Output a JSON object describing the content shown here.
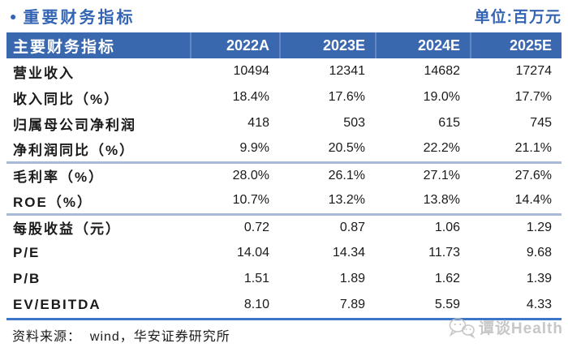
{
  "page": {
    "bullet": "●",
    "title": "重要财务指标",
    "unit_label": "单位:百万元",
    "source_label": "资料来源：  wind，华安证券研究所",
    "watermark_text": "谭谈Health"
  },
  "colors": {
    "header_bg": "#3A68AE",
    "header_divider": "#6186C4",
    "title_blue": "#3465B4",
    "strong_line": "#3B76C8",
    "light_line": "#A9B9D8",
    "watermark_gray": "#C5C5C5"
  },
  "chart_data": {
    "type": "table",
    "title": "重要财务指标",
    "unit": "百万元",
    "columns": [
      "主要财务指标",
      "2022A",
      "2023E",
      "2024E",
      "2025E"
    ],
    "rows": [
      {
        "label": "营业收入",
        "values": [
          "10494",
          "12341",
          "14682",
          "17274"
        ],
        "divider_after": false
      },
      {
        "label": "收入同比（%）",
        "values": [
          "18.4%",
          "17.6%",
          "19.0%",
          "17.7%"
        ],
        "divider_after": false
      },
      {
        "label": "归属母公司净利润",
        "values": [
          "418",
          "503",
          "615",
          "745"
        ],
        "divider_after": false
      },
      {
        "label": "净利润同比（%）",
        "values": [
          "9.9%",
          "20.5%",
          "22.2%",
          "21.1%"
        ],
        "divider_after": true
      },
      {
        "label": "毛利率（%）",
        "values": [
          "28.0%",
          "26.1%",
          "27.1%",
          "27.6%"
        ],
        "divider_after": false
      },
      {
        "label": "ROE（%）",
        "values": [
          "10.7%",
          "13.2%",
          "13.8%",
          "14.4%"
        ],
        "divider_after": true
      },
      {
        "label": "每股收益（元）",
        "values": [
          "0.72",
          "0.87",
          "1.06",
          "1.29"
        ],
        "divider_after": false
      },
      {
        "label": "P/E",
        "values": [
          "14.04",
          "14.34",
          "11.73",
          "9.68"
        ],
        "divider_after": false
      },
      {
        "label": "P/B",
        "values": [
          "1.51",
          "1.89",
          "1.62",
          "1.39"
        ],
        "divider_after": false
      },
      {
        "label": "EV/EBITDA",
        "values": [
          "8.10",
          "7.89",
          "5.59",
          "4.33"
        ],
        "divider_after": false
      }
    ],
    "source": "资料来源：  wind，华安证券研究所"
  }
}
